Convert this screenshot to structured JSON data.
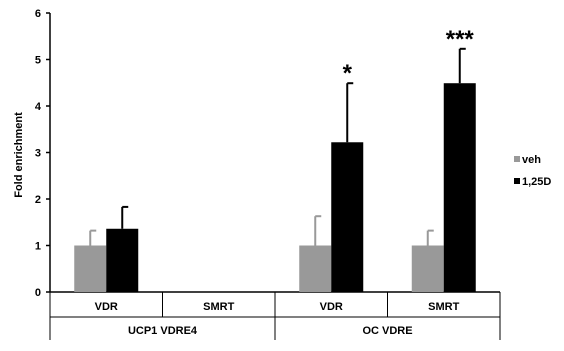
{
  "chart_data": {
    "type": "bar",
    "ylabel": "Fold enrichment",
    "ylim": [
      0,
      6
    ],
    "yticks": [
      "0",
      "1",
      "2",
      "3",
      "4",
      "5",
      "6"
    ],
    "categories": [
      "VDR",
      "SMRT",
      "VDR",
      "SMRT"
    ],
    "groups": [
      {
        "label": "UCP1 VDRE4",
        "categories": [
          0,
          1
        ]
      },
      {
        "label": "OC VDRE",
        "categories": [
          2,
          3
        ]
      }
    ],
    "series": [
      {
        "name": "veh",
        "color": "#999999",
        "values": [
          1.0,
          0.0,
          1.0,
          1.0
        ],
        "errors": [
          0.32,
          0.0,
          0.63,
          0.32
        ]
      },
      {
        "name": "1,25D",
        "color": "#000000",
        "values": [
          1.36,
          0.0,
          3.22,
          4.49
        ],
        "errors": [
          0.47,
          0.0,
          1.27,
          0.74
        ]
      }
    ],
    "annotations": [
      {
        "category": 2,
        "series": 1,
        "text": "*"
      },
      {
        "category": 3,
        "series": 1,
        "text": "***"
      }
    ],
    "legend_position": "right",
    "grid": false
  }
}
